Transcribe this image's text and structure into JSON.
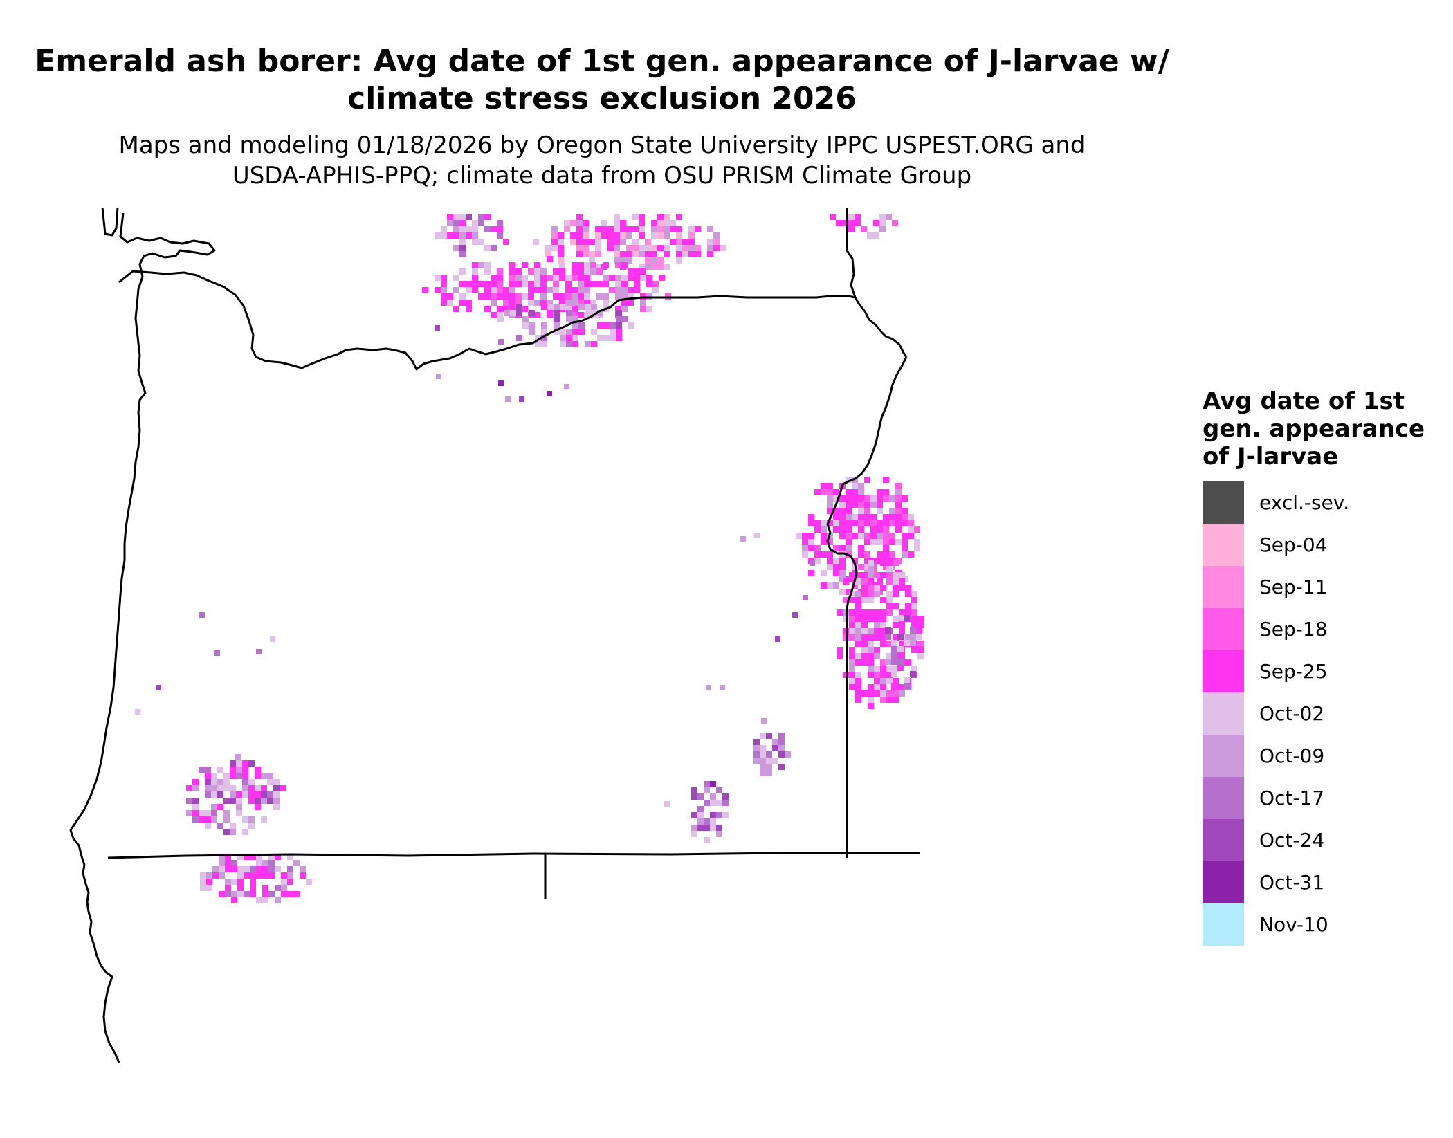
{
  "title_line1": "Emerald ash borer: Avg date of 1st gen. appearance of J-larvae w/",
  "title_line2": "climate stress exclusion 2026",
  "subtitle_line1": "Maps and modeling 01/18/2026 by Oregon State University IPPC USPEST.ORG and",
  "subtitle_line2": "USDA-APHIS-PPQ; climate data from OSU PRISM Climate Group",
  "legend": {
    "title_lines": [
      "Avg date of 1st",
      "gen. appearance",
      "of J-larvae"
    ],
    "items": [
      {
        "label": "excl.-sev.",
        "color": "#4d4d4d"
      },
      {
        "label": "Sep-04",
        "color": "#ffb0d8"
      },
      {
        "label": "Sep-11",
        "color": "#ff88e0"
      },
      {
        "label": "Sep-18",
        "color": "#ff5ae8"
      },
      {
        "label": "Sep-25",
        "color": "#ff33f0"
      },
      {
        "label": "Oct-02",
        "color": "#e0c0e8"
      },
      {
        "label": "Oct-09",
        "color": "#cc99dd"
      },
      {
        "label": "Oct-17",
        "color": "#b470cc"
      },
      {
        "label": "Oct-24",
        "color": "#a048bb"
      },
      {
        "label": "Oct-31",
        "color": "#8a22aa"
      },
      {
        "label": "Nov-10",
        "color": "#b3ecff"
      }
    ]
  }
}
